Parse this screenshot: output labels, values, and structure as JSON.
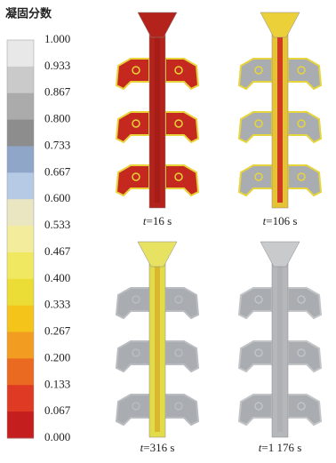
{
  "legend": {
    "title": "凝固分数",
    "ticks": [
      "1.000",
      "0.933",
      "0.867",
      "0.800",
      "0.733",
      "0.667",
      "0.600",
      "0.533",
      "0.467",
      "0.400",
      "0.333",
      "0.267",
      "0.200",
      "0.133",
      "0.067",
      "0.000"
    ]
  },
  "panels": [
    {
      "symbol": "t",
      "value": "=16 s"
    },
    {
      "symbol": "t",
      "value": "=106 s"
    },
    {
      "symbol": "t",
      "value": "=316 s"
    },
    {
      "symbol": "t",
      "value": "=1 176 s"
    }
  ]
}
